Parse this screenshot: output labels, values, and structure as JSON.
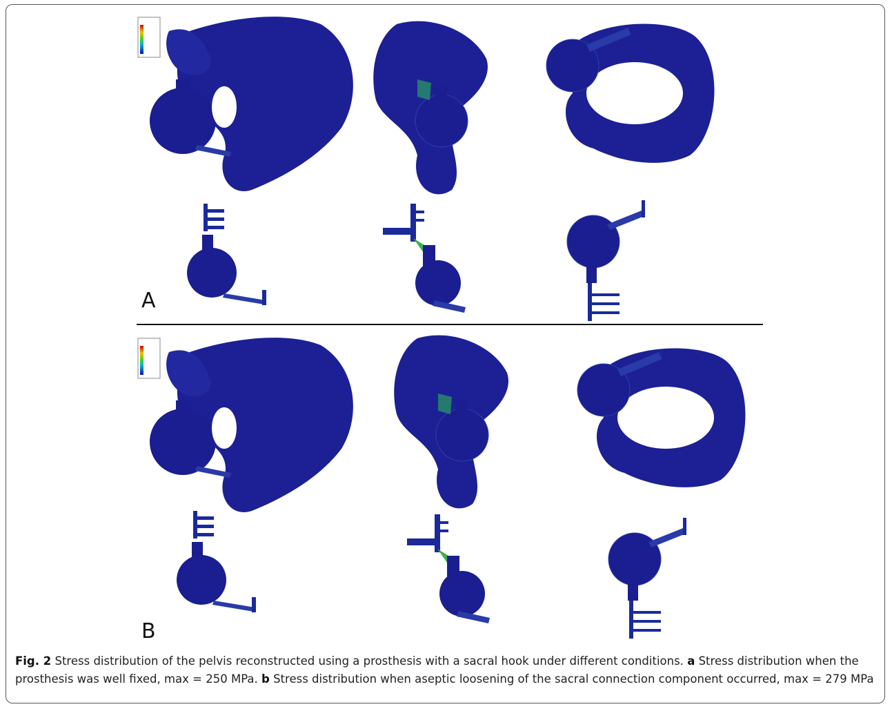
{
  "figure": {
    "panel_labels": [
      "A",
      "B"
    ],
    "caption": {
      "label": "Fig. 2",
      "text": "Stress distribution of the pelvis reconstructed using a prosthesis with a sacral hook under different conditions.",
      "parts": [
        {
          "label": "a",
          "text": "Stress distribution when the prosthesis was well fixed, max = 250 MPa."
        },
        {
          "label": "b",
          "text": "Stress distribution when aseptic loosening of the sacral connection component occurred, max = 279 MPa"
        }
      ]
    }
  }
}
